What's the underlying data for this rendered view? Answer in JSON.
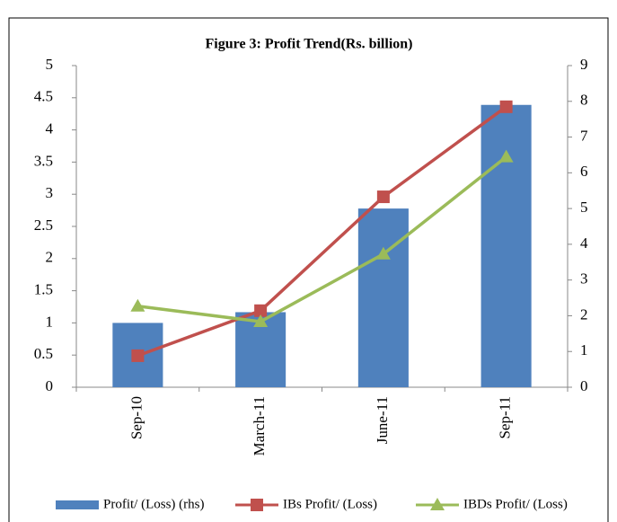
{
  "chart_data": {
    "type": "bar_line",
    "title": "Figure 3: Profit Trend(Rs. billion)",
    "categories": [
      "Sep-10",
      "March-11",
      "June-11",
      "Sep-11"
    ],
    "series": [
      {
        "name": "Profit/ (Loss) (rhs)",
        "color": "#4f81bd",
        "type": "bar",
        "axis": "y2",
        "values": [
          1.8,
          2.1,
          5.0,
          7.9
        ]
      },
      {
        "name": "IBs Profit/ (Loss)",
        "color": "#c0504d",
        "type": "line",
        "marker": "square",
        "values": [
          0.49,
          1.19,
          2.96,
          4.36
        ]
      },
      {
        "name": "IBDs Profit/ (Loss)",
        "color": "#9bbb59",
        "type": "line",
        "marker": "triangle",
        "values": [
          1.26,
          1.02,
          2.07,
          3.58
        ]
      }
    ],
    "ylim": [
      0,
      5
    ],
    "yticks": [
      0,
      0.5,
      1,
      1.5,
      2,
      2.5,
      3,
      3.5,
      4,
      4.5,
      5
    ],
    "y2lim": [
      0,
      9
    ],
    "y2ticks": [
      0,
      1,
      2,
      3,
      4,
      5,
      6,
      7,
      8,
      9
    ],
    "legend": "bottom"
  }
}
